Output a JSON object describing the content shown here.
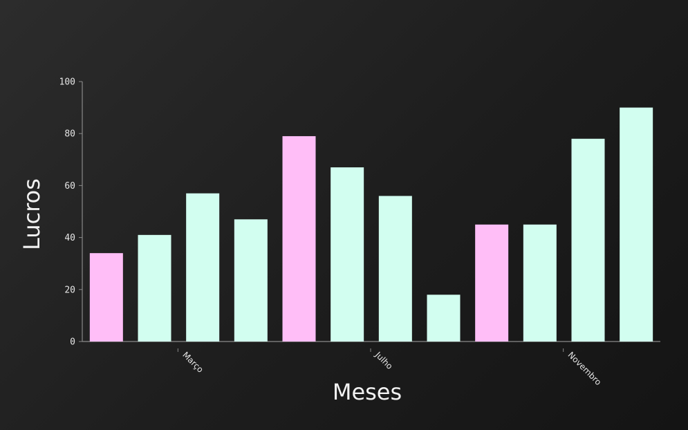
{
  "chart_data": {
    "type": "bar",
    "title": "",
    "xlabel": "Meses",
    "ylabel": "Lucros",
    "ylim": [
      0,
      100
    ],
    "yticks": [
      0,
      20,
      40,
      60,
      80,
      100
    ],
    "xtick_labels": [
      {
        "index": 2,
        "label": "Março"
      },
      {
        "index": 6,
        "label": "Julho"
      },
      {
        "index": 10,
        "label": "Novembro"
      }
    ],
    "values": [
      34,
      41,
      57,
      47,
      79,
      67,
      56,
      18,
      45,
      45,
      78,
      90
    ],
    "highlight_indices": [
      0,
      4,
      8
    ],
    "colors": {
      "default_bar": "#d2fef0",
      "highlight_bar": "#ffbef7",
      "axis": "#8a8a8a",
      "text": "#e6e6e6"
    },
    "grid": false,
    "legend": "none"
  }
}
